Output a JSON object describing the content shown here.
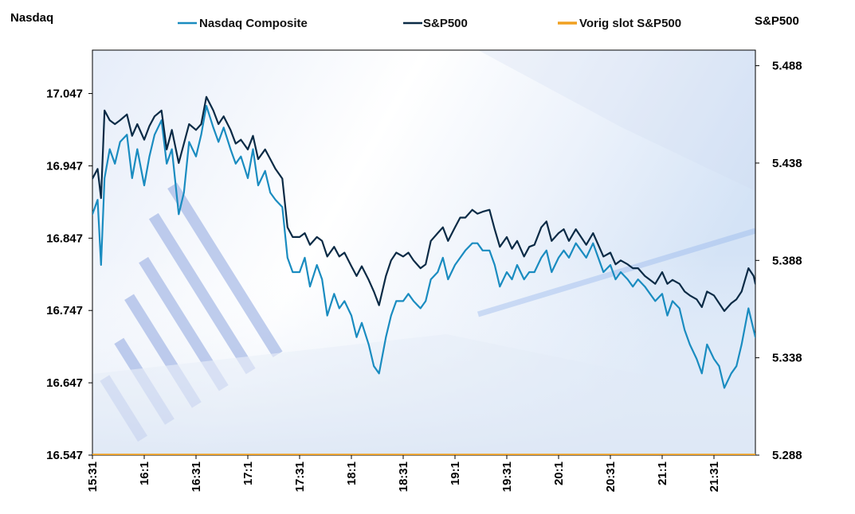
{
  "chart_data": {
    "type": "line",
    "left_axis_title": "Nasdaq",
    "right_axis_title": "S&P500",
    "left_ylim": [
      16.547,
      17.107
    ],
    "right_ylim": [
      5.288,
      5.496
    ],
    "left_ticks": [
      "16.547",
      "16.647",
      "16.747",
      "16.847",
      "16.947",
      "17.047"
    ],
    "left_tick_values": [
      16.547,
      16.647,
      16.747,
      16.847,
      16.947,
      17.047
    ],
    "right_ticks": [
      "5.288",
      "5.338",
      "5.388",
      "5.438",
      "5.488"
    ],
    "right_tick_values": [
      5.288,
      5.338,
      5.388,
      5.438,
      5.488
    ],
    "x_ticks": [
      "15:31",
      "16:1",
      "16:31",
      "17:1",
      "17:31",
      "18:1",
      "18:31",
      "19:1",
      "19:31",
      "20:1",
      "20:31",
      "21:1",
      "21:31"
    ],
    "x_tick_minutes": [
      0,
      30,
      60,
      90,
      120,
      150,
      180,
      210,
      240,
      270,
      300,
      330,
      360
    ],
    "x_range_minutes": [
      0,
      384
    ],
    "legend": [
      {
        "name": "Nasdaq Composite",
        "color": "#1a8cc0"
      },
      {
        "name": "S&P500",
        "color": "#0b2b46"
      },
      {
        "name": "Vorig slot S&P500",
        "color": "#f0a020"
      }
    ],
    "series": [
      {
        "name": "Nasdaq Composite",
        "axis": "left",
        "color": "#1a8cc0",
        "x": [
          0,
          3,
          5,
          7,
          10,
          13,
          16,
          20,
          23,
          26,
          30,
          33,
          36,
          40,
          43,
          46,
          50,
          53,
          56,
          60,
          63,
          66,
          70,
          73,
          76,
          80,
          83,
          86,
          90,
          93,
          96,
          100,
          103,
          106,
          110,
          113,
          116,
          120,
          123,
          126,
          130,
          133,
          136,
          140,
          143,
          146,
          150,
          153,
          156,
          160,
          163,
          166,
          170,
          173,
          176,
          180,
          183,
          186,
          190,
          193,
          196,
          200,
          203,
          206,
          210,
          213,
          216,
          220,
          223,
          226,
          230,
          233,
          236,
          240,
          243,
          246,
          250,
          253,
          256,
          260,
          263,
          266,
          270,
          273,
          276,
          280,
          283,
          286,
          290,
          293,
          296,
          300,
          303,
          306,
          310,
          313,
          316,
          320,
          323,
          326,
          330,
          333,
          336,
          340,
          343,
          346,
          350,
          353,
          356,
          360,
          363,
          366,
          370,
          373,
          376,
          380,
          383,
          384
        ],
        "values": [
          16.88,
          16.9,
          16.81,
          16.93,
          16.97,
          16.95,
          16.98,
          16.99,
          16.93,
          16.97,
          16.92,
          16.96,
          16.99,
          17.01,
          16.95,
          16.97,
          16.88,
          16.91,
          16.98,
          16.96,
          16.99,
          17.03,
          17.0,
          16.98,
          17.0,
          16.97,
          16.95,
          16.96,
          16.93,
          16.97,
          16.92,
          16.94,
          16.91,
          16.9,
          16.89,
          16.82,
          16.8,
          16.8,
          16.82,
          16.78,
          16.81,
          16.79,
          16.74,
          16.77,
          16.75,
          16.76,
          16.74,
          16.71,
          16.73,
          16.7,
          16.67,
          16.66,
          16.71,
          16.74,
          16.76,
          16.76,
          16.77,
          16.76,
          16.75,
          16.76,
          16.79,
          16.8,
          16.82,
          16.79,
          16.81,
          16.82,
          16.83,
          16.84,
          16.84,
          16.83,
          16.83,
          16.81,
          16.78,
          16.8,
          16.79,
          16.81,
          16.79,
          16.8,
          16.8,
          16.82,
          16.83,
          16.8,
          16.82,
          16.83,
          16.82,
          16.84,
          16.83,
          16.82,
          16.84,
          16.82,
          16.8,
          16.81,
          16.79,
          16.8,
          16.79,
          16.78,
          16.79,
          16.78,
          16.77,
          16.76,
          16.77,
          16.74,
          16.76,
          16.75,
          16.72,
          16.7,
          16.68,
          16.66,
          16.7,
          16.68,
          16.67,
          16.64,
          16.66,
          16.67,
          16.7,
          16.75,
          16.72,
          16.71
        ]
      },
      {
        "name": "S&P500",
        "axis": "right",
        "color": "#0b2b46",
        "x": [
          0,
          3,
          5,
          7,
          10,
          13,
          16,
          20,
          23,
          26,
          30,
          33,
          36,
          40,
          43,
          46,
          50,
          53,
          56,
          60,
          63,
          66,
          70,
          73,
          76,
          80,
          83,
          86,
          90,
          93,
          96,
          100,
          103,
          106,
          110,
          113,
          116,
          120,
          123,
          126,
          130,
          133,
          136,
          140,
          143,
          146,
          150,
          153,
          156,
          160,
          163,
          166,
          170,
          173,
          176,
          180,
          183,
          186,
          190,
          193,
          196,
          200,
          203,
          206,
          210,
          213,
          216,
          220,
          223,
          226,
          230,
          233,
          236,
          240,
          243,
          246,
          250,
          253,
          256,
          260,
          263,
          266,
          270,
          273,
          276,
          280,
          283,
          286,
          290,
          293,
          296,
          300,
          303,
          306,
          310,
          313,
          316,
          320,
          323,
          326,
          330,
          333,
          336,
          340,
          343,
          346,
          350,
          353,
          356,
          360,
          363,
          366,
          370,
          373,
          376,
          380,
          383,
          384
        ],
        "values": [
          5.43,
          5.435,
          5.42,
          5.465,
          5.46,
          5.458,
          5.46,
          5.463,
          5.452,
          5.458,
          5.45,
          5.457,
          5.462,
          5.465,
          5.445,
          5.455,
          5.438,
          5.448,
          5.458,
          5.455,
          5.458,
          5.472,
          5.465,
          5.458,
          5.462,
          5.455,
          5.448,
          5.45,
          5.445,
          5.452,
          5.44,
          5.445,
          5.44,
          5.435,
          5.43,
          5.405,
          5.4,
          5.4,
          5.402,
          5.396,
          5.4,
          5.398,
          5.39,
          5.395,
          5.39,
          5.392,
          5.385,
          5.38,
          5.385,
          5.378,
          5.372,
          5.365,
          5.38,
          5.388,
          5.392,
          5.39,
          5.392,
          5.388,
          5.384,
          5.386,
          5.398,
          5.402,
          5.405,
          5.398,
          5.405,
          5.41,
          5.41,
          5.414,
          5.412,
          5.413,
          5.414,
          5.404,
          5.395,
          5.4,
          5.394,
          5.398,
          5.39,
          5.395,
          5.396,
          5.405,
          5.408,
          5.398,
          5.402,
          5.404,
          5.398,
          5.404,
          5.4,
          5.396,
          5.402,
          5.396,
          5.39,
          5.392,
          5.386,
          5.388,
          5.386,
          5.384,
          5.384,
          5.38,
          5.378,
          5.376,
          5.382,
          5.376,
          5.378,
          5.376,
          5.372,
          5.37,
          5.368,
          5.364,
          5.372,
          5.37,
          5.366,
          5.362,
          5.366,
          5.368,
          5.372,
          5.384,
          5.38,
          5.376
        ]
      },
      {
        "name": "Vorig slot S&P500",
        "axis": "right",
        "color": "#f0a020",
        "x": [
          0,
          384
        ],
        "values": [
          5.288,
          5.288
        ]
      }
    ]
  }
}
